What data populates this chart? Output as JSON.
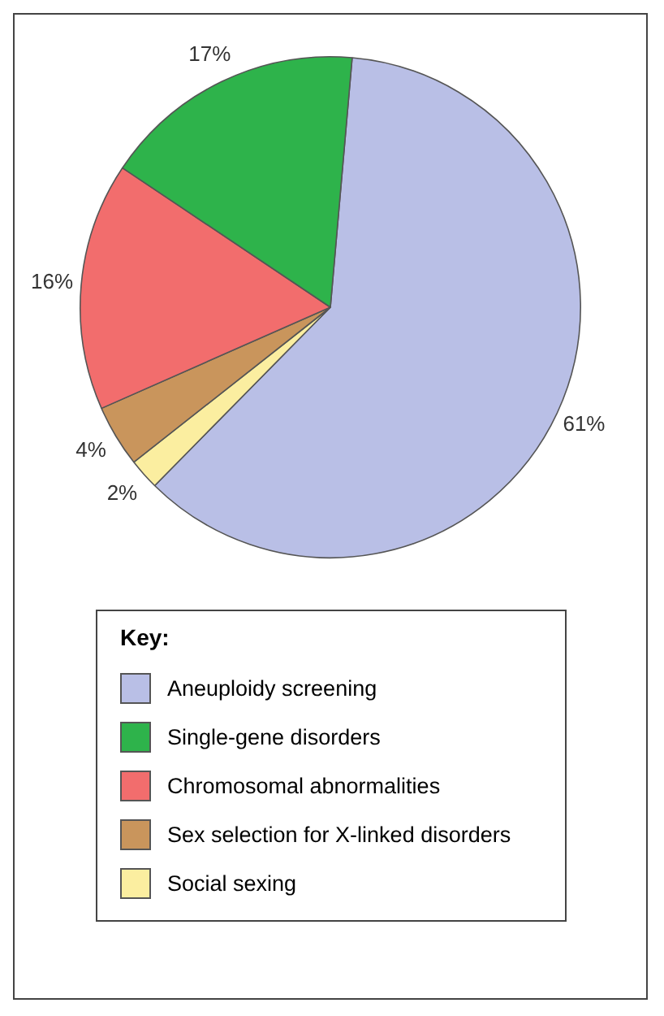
{
  "chart_data": {
    "type": "pie",
    "categories": [
      "Aneuploidy screening",
      "Single-gene disorders",
      "Chromosomal abnormalities",
      "Sex selection for X-linked disorders",
      "Social sexing"
    ],
    "values": [
      61,
      17,
      16,
      4,
      2
    ],
    "colors": [
      "#b9bfe6",
      "#2eb34b",
      "#f26d6d",
      "#c9955c",
      "#fbeea0"
    ],
    "value_labels": [
      "61%",
      "17%",
      "16%",
      "4%",
      "2%"
    ],
    "legend": "bottom",
    "legend_title": "Key:"
  }
}
